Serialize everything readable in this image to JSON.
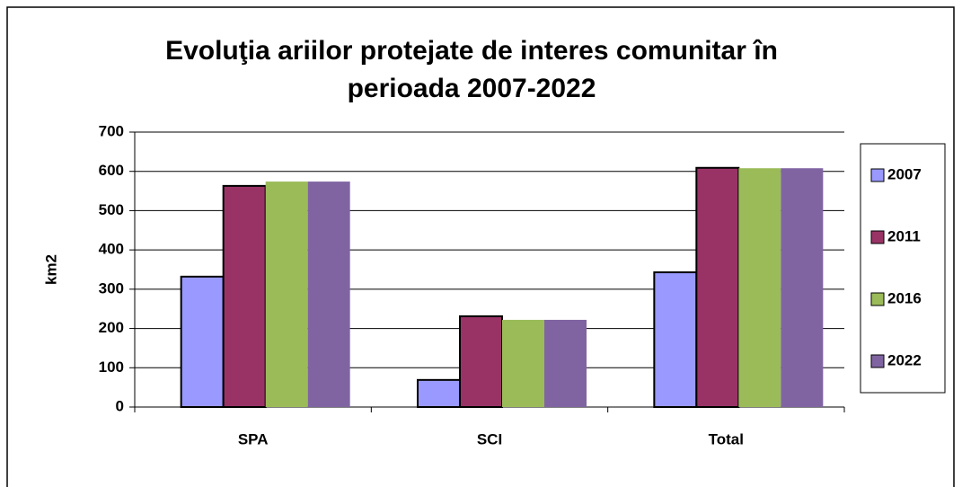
{
  "chart_data": {
    "type": "bar",
    "title": [
      "Evoluţia ariilor protejate de interes comunitar în",
      "perioada 2007-2022"
    ],
    "ylabel": "km2",
    "categories": [
      "SPA",
      "SCI",
      "Total"
    ],
    "series": [
      {
        "name": "2007",
        "color": "#9999ff",
        "edgecolor": "#000000",
        "values": [
          332,
          69,
          343
        ]
      },
      {
        "name": "2011",
        "color": "#993366",
        "edgecolor": "#000000",
        "values": [
          563,
          231,
          609
        ]
      },
      {
        "name": "2016",
        "color": "#9bbb59",
        "values": [
          574,
          222,
          608
        ]
      },
      {
        "name": "2022",
        "color": "#8064a2",
        "values": [
          574,
          222,
          608
        ]
      }
    ],
    "ylim": [
      0,
      700
    ],
    "yticks": [
      0,
      100,
      200,
      300,
      400,
      500,
      600,
      700
    ],
    "grid": true,
    "legend": "right"
  }
}
